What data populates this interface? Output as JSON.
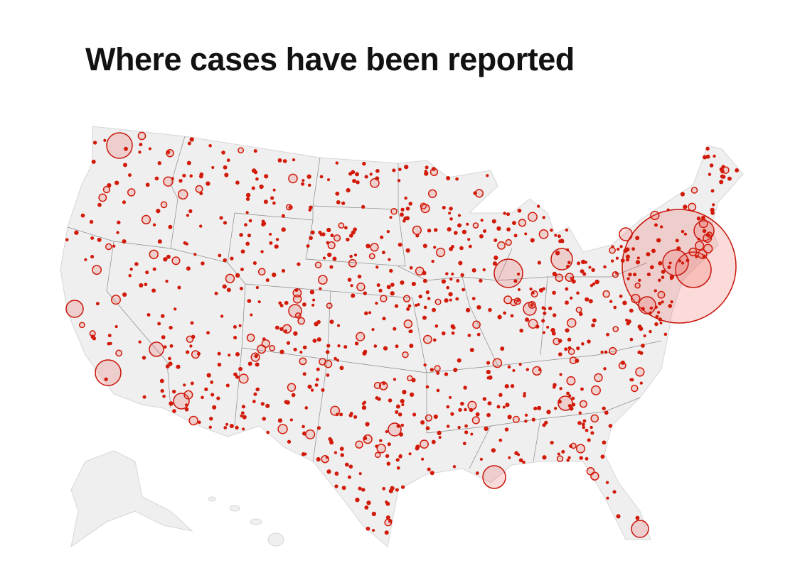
{
  "header": {
    "title": "Where cases have been reported"
  }
}
